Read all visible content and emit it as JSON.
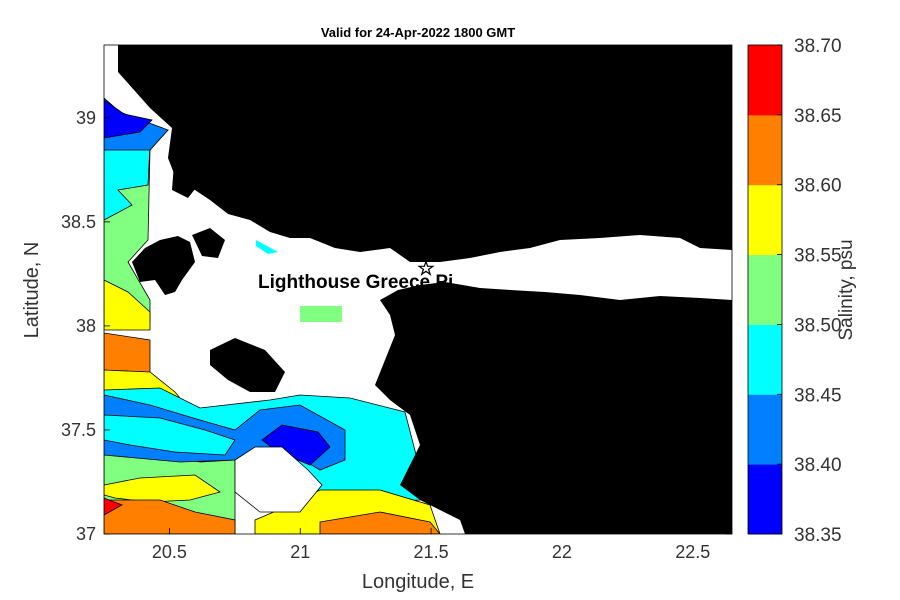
{
  "chart_data": {
    "type": "heatmap",
    "title": "Valid for 24-Apr-2022 1800 GMT",
    "xlabel": "Longitude, E",
    "ylabel": "Latitude, N",
    "xlim": [
      20.25,
      22.65
    ],
    "ylim": [
      37.0,
      39.35
    ],
    "xticks": [
      20.5,
      21,
      21.5,
      22,
      22.5
    ],
    "yticks": [
      37,
      37.5,
      38,
      38.5,
      39
    ],
    "xtick_labels": [
      "20.5",
      "21",
      "21.5",
      "22",
      "22.5"
    ],
    "ytick_labels": [
      "37",
      "37.5",
      "38",
      "38.5",
      "39"
    ],
    "annotation": "Lighthouse Greece Pi",
    "marker": {
      "label": "star",
      "lon": 21.48,
      "lat": 38.27
    },
    "colorbar": {
      "label": "Salinity, psu",
      "levels": [
        38.35,
        38.4,
        38.45,
        38.5,
        38.55,
        38.6,
        38.65,
        38.7
      ],
      "tick_labels": [
        "38.35",
        "38.40",
        "38.45",
        "38.50",
        "38.55",
        "38.60",
        "38.65",
        "38.70"
      ],
      "colors": [
        "#0000ff",
        "#0080ff",
        "#00ffff",
        "#80ff80",
        "#ffff00",
        "#ff8000",
        "#ff0000"
      ]
    },
    "land_color": "#000000",
    "nodata_color": "#ffffff",
    "grid": false
  }
}
